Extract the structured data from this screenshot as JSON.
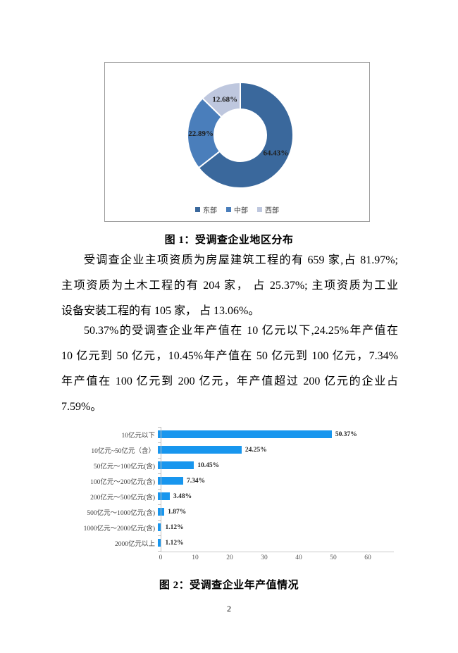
{
  "page": {
    "number": "2"
  },
  "figure1": {
    "caption": "图 1：受调查企业地区分布"
  },
  "figure2": {
    "caption": "图 2：受调查企业年产值情况"
  },
  "paragraphs": {
    "p1": {
      "lines": [
        "受调查企业主项资质为房屋建筑工程的有 659 家,占 81.97%;",
        "主项资质为土木工程的有 204 家， 占 25.37%; 主项资质为工业",
        "设备安装工程的有 105 家， 占 13.06%。"
      ]
    },
    "p2": {
      "lines": [
        "50.37%的受调查企业年产值在 10 亿元以下,24.25%年产值在",
        "10 亿元到 50 亿元，10.45%年产值在 50 亿元到 100 亿元，7.34%",
        "年产值在 100 亿元到 200 亿元，年产值超过 200 亿元的企业占",
        "7.59%。"
      ]
    }
  },
  "chart_data": [
    {
      "type": "pie",
      "subtype": "donut",
      "title": "受调查企业地区分布",
      "labels": [
        "东部",
        "中部",
        "西部"
      ],
      "values": [
        64.43,
        22.89,
        12.68
      ],
      "value_labels": [
        "64.43%",
        "22.89%",
        "12.68%"
      ],
      "colors": [
        "#3A689C",
        "#4A7EBB",
        "#BEC7DE"
      ],
      "legend_position": "bottom",
      "start_angle_deg": 0,
      "direction": "clockwise"
    },
    {
      "type": "bar",
      "orientation": "horizontal",
      "title": "受调查企业年产值情况",
      "categories": [
        "10亿元以下",
        "10亿元~50亿元（含）",
        "50亿元～100亿元(含)",
        "100亿元～200亿元(含)",
        "200亿元～500亿元(含)",
        "500亿元～1000亿元(含)",
        "1000亿元～2000亿元(含)",
        "2000亿元以上"
      ],
      "values": [
        50.37,
        24.25,
        10.45,
        7.34,
        3.48,
        1.87,
        1.12,
        1.12
      ],
      "value_labels": [
        "50.37%",
        "24.25%",
        "10.45%",
        "7.34%",
        "3.48%",
        "1.87%",
        "1.12%",
        "1.12%"
      ],
      "xlim": [
        0,
        60
      ],
      "x_ticks": [
        "0",
        "10",
        "20",
        "30",
        "40",
        "50",
        "60"
      ],
      "bar_color": "#1896EE",
      "grid": false,
      "legend_position": "none"
    }
  ]
}
